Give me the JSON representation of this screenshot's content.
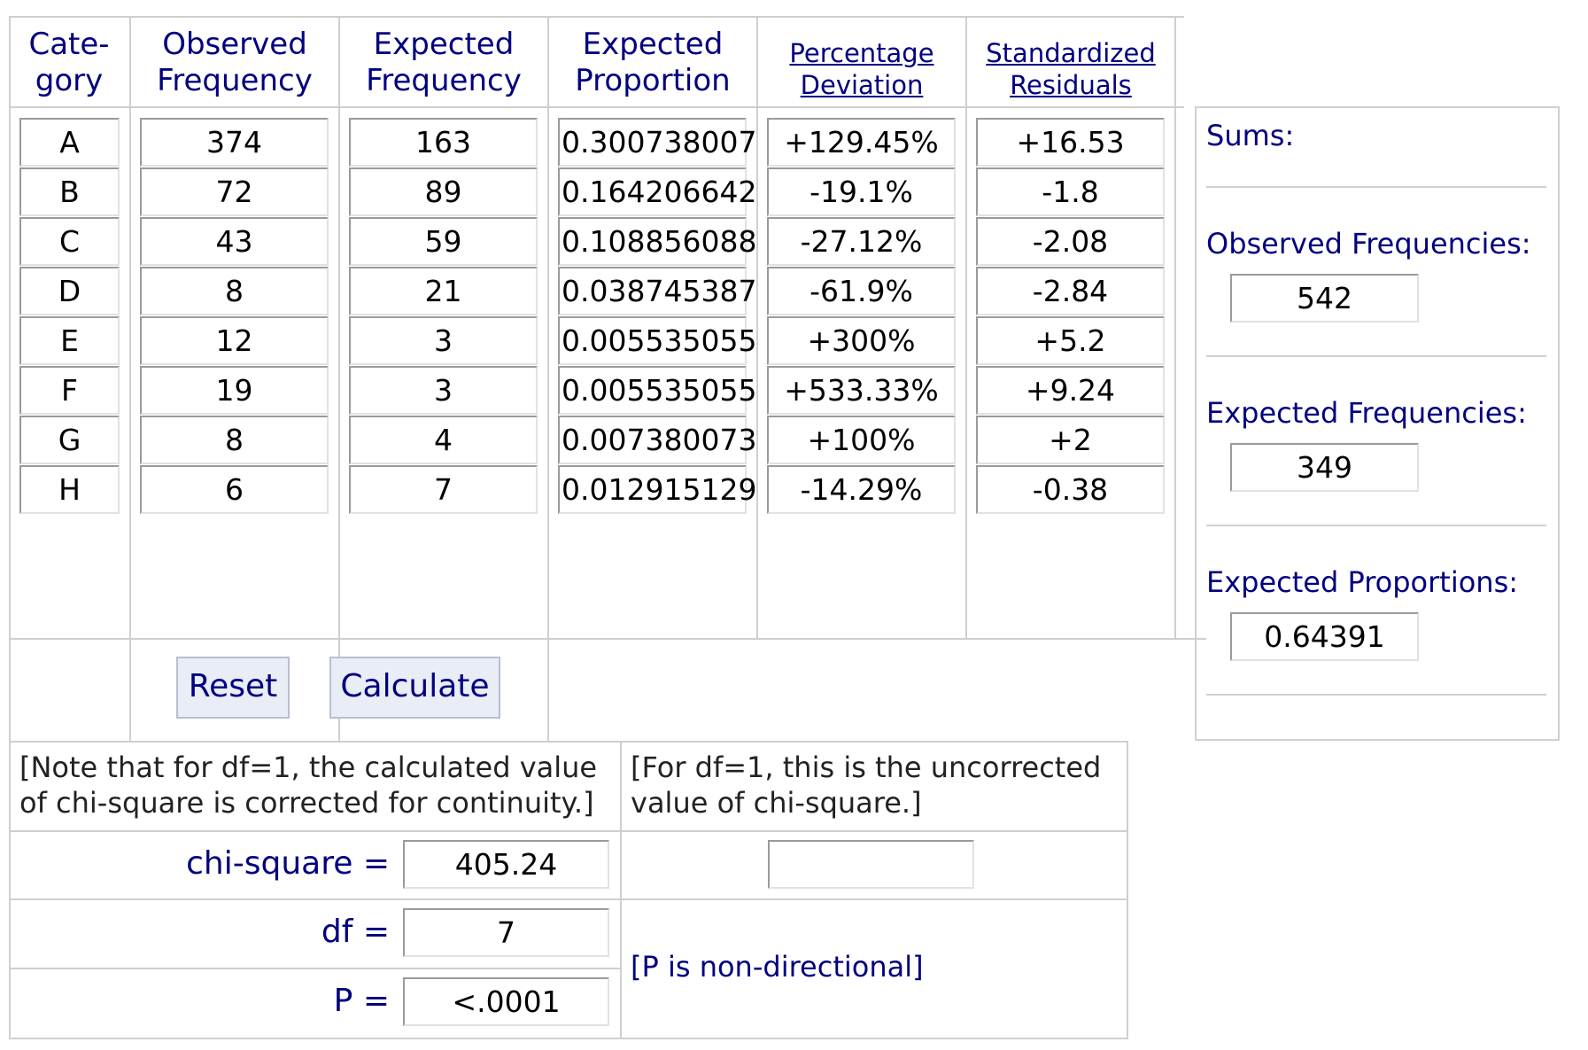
{
  "headers": {
    "category": [
      "Cate-",
      "gory"
    ],
    "observed": [
      "Observed",
      "Frequency"
    ],
    "expected_freq": [
      "Expected",
      "Frequency"
    ],
    "expected_prop": [
      "Expected",
      "Proportion"
    ],
    "pct_dev": [
      "Percentage",
      "Deviation"
    ],
    "std_res": [
      "Standardized",
      "Residuals"
    ]
  },
  "rows": [
    {
      "cat": "A",
      "obs": "374",
      "exp": "163",
      "prop": "0.300738007",
      "dev": "+129.45%",
      "res": "+16.53"
    },
    {
      "cat": "B",
      "obs": "72",
      "exp": "89",
      "prop": "0.164206642",
      "dev": "-19.1%",
      "res": "-1.8"
    },
    {
      "cat": "C",
      "obs": "43",
      "exp": "59",
      "prop": "0.108856088",
      "dev": "-27.12%",
      "res": "-2.08"
    },
    {
      "cat": "D",
      "obs": "8",
      "exp": "21",
      "prop": "0.038745387",
      "dev": "-61.9%",
      "res": "-2.84"
    },
    {
      "cat": "E",
      "obs": "12",
      "exp": "3",
      "prop": "0.005535055",
      "dev": "+300%",
      "res": "+5.2"
    },
    {
      "cat": "F",
      "obs": "19",
      "exp": "3",
      "prop": "0.005535055",
      "dev": "+533.33%",
      "res": "+9.24"
    },
    {
      "cat": "G",
      "obs": "8",
      "exp": "4",
      "prop": "0.007380073",
      "dev": "+100%",
      "res": "+2"
    },
    {
      "cat": "H",
      "obs": "6",
      "exp": "7",
      "prop": "0.012915129",
      "dev": "-14.29%",
      "res": "-0.38"
    }
  ],
  "sums": {
    "title": "Sums:",
    "observed_label": "Observed Frequencies:",
    "observed_value": "542",
    "expected_label": "Expected Frequencies:",
    "expected_value": "349",
    "proportions_label": "Expected Proportions:",
    "proportions_value": "0.64391"
  },
  "buttons": {
    "reset": "Reset",
    "calculate": "Calculate"
  },
  "notes": {
    "left_line1": "[Note that for df=1, the calculated value",
    "left_line2": "of chi-square is corrected for continuity.]",
    "right_line1": "[For df=1, this is the uncorrected",
    "right_line2": "value of chi-square.]",
    "p_note": "[P is non-directional]"
  },
  "results": {
    "chi_label": "chi-square =",
    "chi_value": "405.24",
    "chi_uncorrected": "",
    "df_label": "df =",
    "df_value": "7",
    "p_label": "P =",
    "p_value": "<.0001"
  }
}
